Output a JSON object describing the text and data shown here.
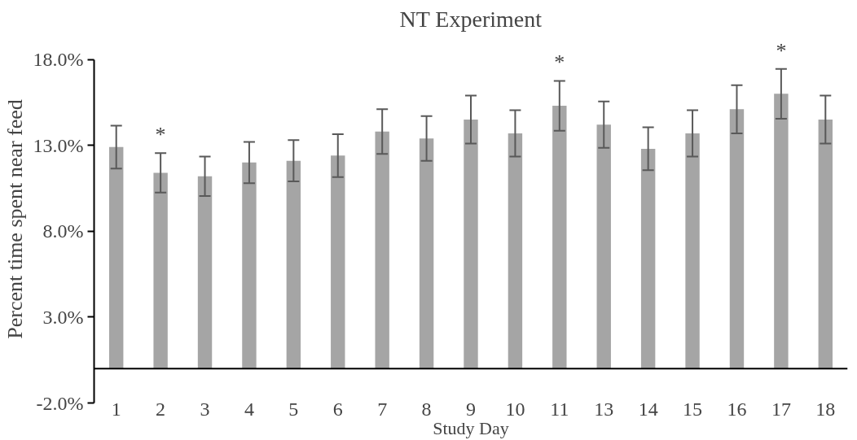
{
  "chart_data": {
    "type": "bar",
    "title": "NT Experiment",
    "xlabel": "Study Day",
    "ylabel": "Percent time spent near feed",
    "categories": [
      "1",
      "2",
      "3",
      "4",
      "5",
      "6",
      "7",
      "8",
      "9",
      "10",
      "11",
      "13",
      "14",
      "15",
      "16",
      "17",
      "18"
    ],
    "values": [
      12.9,
      11.4,
      11.2,
      12.0,
      12.1,
      12.4,
      13.8,
      13.4,
      14.5,
      13.7,
      15.3,
      14.2,
      12.8,
      13.7,
      15.1,
      16.0,
      14.5
    ],
    "errors": [
      1.25,
      1.15,
      1.15,
      1.2,
      1.2,
      1.25,
      1.3,
      1.3,
      1.4,
      1.35,
      1.45,
      1.35,
      1.25,
      1.35,
      1.4,
      1.45,
      1.4
    ],
    "color": "#a5a5a5",
    "ylim": [
      -2,
      18
    ],
    "yticks": [
      {
        "value": -2,
        "label": "-2.0%"
      },
      {
        "value": 3,
        "label": "3.0%"
      },
      {
        "value": 8,
        "label": "8.0%"
      },
      {
        "value": 13,
        "label": "13.0%"
      },
      {
        "value": 18,
        "label": "18.0%"
      }
    ],
    "grid": false,
    "annotations": [
      {
        "text": "*",
        "x": "2",
        "y": 12.55
      },
      {
        "text": "*",
        "x": "11",
        "y": 16.75
      },
      {
        "text": "*",
        "x": "17",
        "y": 17.45
      }
    ]
  }
}
